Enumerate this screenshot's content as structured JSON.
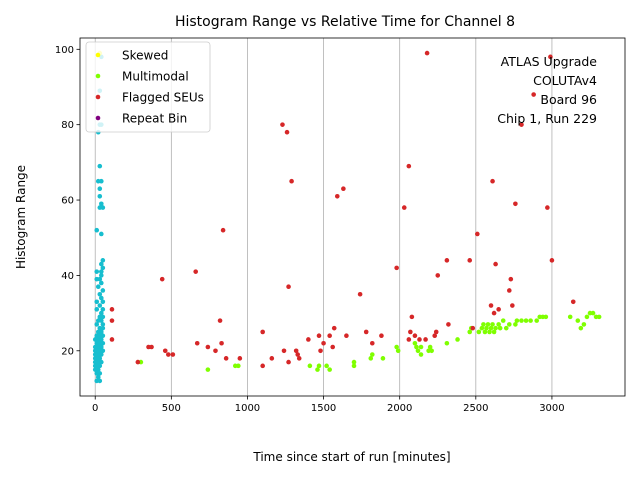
{
  "chart_data": {
    "type": "scatter",
    "title": "Histogram Range vs Relative Time for Channel 8",
    "xlabel": "Time since start of run [minutes]",
    "ylabel": "Histogram Range",
    "xlim": [
      -100,
      3480
    ],
    "ylim": [
      8,
      103
    ],
    "xticks": [
      0,
      500,
      1000,
      1500,
      2000,
      2500,
      3000
    ],
    "yticks": [
      20,
      40,
      60,
      80,
      100
    ],
    "grid": "x-only",
    "legend_position": "top-left",
    "annotation": [
      "ATLAS Upgrade",
      "COLUTAv4",
      "Board 96",
      "Chip 1, Run 229"
    ],
    "series": [
      {
        "name": "Skewed",
        "color": "#ffff00",
        "points": [
          [
            30,
            99
          ]
        ]
      },
      {
        "name": "Multimodal",
        "color": "#7fff00",
        "points": [
          [
            300,
            17
          ],
          [
            740,
            15
          ],
          [
            920,
            16
          ],
          [
            940,
            16
          ],
          [
            1410,
            16
          ],
          [
            1460,
            15
          ],
          [
            1470,
            16
          ],
          [
            1520,
            16
          ],
          [
            1540,
            15
          ],
          [
            1700,
            17
          ],
          [
            1700,
            16
          ],
          [
            1810,
            18
          ],
          [
            1820,
            19
          ],
          [
            1890,
            18
          ],
          [
            1980,
            21
          ],
          [
            1990,
            20
          ],
          [
            2100,
            22
          ],
          [
            2110,
            21
          ],
          [
            2120,
            20
          ],
          [
            2140,
            19
          ],
          [
            2140,
            21
          ],
          [
            2190,
            20
          ],
          [
            2200,
            21
          ],
          [
            2210,
            20
          ],
          [
            2310,
            22
          ],
          [
            2380,
            23
          ],
          [
            2460,
            25
          ],
          [
            2470,
            26
          ],
          [
            2520,
            25
          ],
          [
            2540,
            26
          ],
          [
            2550,
            27
          ],
          [
            2560,
            25
          ],
          [
            2570,
            26
          ],
          [
            2580,
            27
          ],
          [
            2590,
            25
          ],
          [
            2600,
            26
          ],
          [
            2610,
            27
          ],
          [
            2620,
            25
          ],
          [
            2630,
            26
          ],
          [
            2650,
            27
          ],
          [
            2660,
            26
          ],
          [
            2680,
            28
          ],
          [
            2700,
            26
          ],
          [
            2720,
            27
          ],
          [
            2760,
            27
          ],
          [
            2770,
            28
          ],
          [
            2800,
            28
          ],
          [
            2830,
            28
          ],
          [
            2860,
            28
          ],
          [
            2900,
            28
          ],
          [
            2920,
            29
          ],
          [
            2940,
            29
          ],
          [
            2960,
            29
          ],
          [
            3120,
            29
          ],
          [
            3170,
            28
          ],
          [
            3190,
            26
          ],
          [
            3210,
            27
          ],
          [
            3230,
            29
          ],
          [
            3250,
            30
          ],
          [
            3270,
            30
          ],
          [
            3290,
            29
          ],
          [
            3310,
            29
          ]
        ]
      },
      {
        "name": "Flagged SEUs",
        "color": "#d62728",
        "points": [
          [
            110,
            31
          ],
          [
            110,
            28
          ],
          [
            110,
            23
          ],
          [
            280,
            17
          ],
          [
            350,
            21
          ],
          [
            370,
            21
          ],
          [
            440,
            39
          ],
          [
            460,
            20
          ],
          [
            480,
            19
          ],
          [
            510,
            19
          ],
          [
            660,
            41
          ],
          [
            670,
            22
          ],
          [
            740,
            21
          ],
          [
            790,
            20
          ],
          [
            820,
            28
          ],
          [
            830,
            22
          ],
          [
            840,
            52
          ],
          [
            860,
            18
          ],
          [
            950,
            18
          ],
          [
            1100,
            25
          ],
          [
            1100,
            16
          ],
          [
            1160,
            18
          ],
          [
            1230,
            80
          ],
          [
            1240,
            20
          ],
          [
            1260,
            78
          ],
          [
            1270,
            37
          ],
          [
            1270,
            17
          ],
          [
            1290,
            65
          ],
          [
            1320,
            20
          ],
          [
            1330,
            19
          ],
          [
            1340,
            18
          ],
          [
            1400,
            23
          ],
          [
            1470,
            24
          ],
          [
            1480,
            20
          ],
          [
            1500,
            22
          ],
          [
            1540,
            24
          ],
          [
            1560,
            21
          ],
          [
            1570,
            26
          ],
          [
            1590,
            61
          ],
          [
            1630,
            63
          ],
          [
            1650,
            24
          ],
          [
            1740,
            35
          ],
          [
            1780,
            25
          ],
          [
            1820,
            22
          ],
          [
            1880,
            24
          ],
          [
            1980,
            42
          ],
          [
            2030,
            58
          ],
          [
            2060,
            69
          ],
          [
            2060,
            23
          ],
          [
            2070,
            25
          ],
          [
            2080,
            29
          ],
          [
            2100,
            24
          ],
          [
            2130,
            23
          ],
          [
            2170,
            23
          ],
          [
            2180,
            99
          ],
          [
            2230,
            24
          ],
          [
            2240,
            25
          ],
          [
            2250,
            40
          ],
          [
            2310,
            44
          ],
          [
            2320,
            27
          ],
          [
            2460,
            44
          ],
          [
            2480,
            26
          ],
          [
            2510,
            51
          ],
          [
            2600,
            32
          ],
          [
            2610,
            65
          ],
          [
            2620,
            30
          ],
          [
            2630,
            43
          ],
          [
            2650,
            31
          ],
          [
            2720,
            36
          ],
          [
            2730,
            39
          ],
          [
            2740,
            32
          ],
          [
            2760,
            59
          ],
          [
            2800,
            80
          ],
          [
            2880,
            88
          ],
          [
            2970,
            58
          ],
          [
            2990,
            98
          ],
          [
            3000,
            44
          ],
          [
            3140,
            33
          ]
        ]
      },
      {
        "name": "Repeat Bin",
        "color": "#800080",
        "points": []
      },
      {
        "name": "",
        "color": "#17becf",
        "points": [
          [
            40,
            98
          ],
          [
            30,
            89
          ],
          [
            30,
            80
          ],
          [
            40,
            80
          ],
          [
            20,
            78
          ],
          [
            30,
            69
          ],
          [
            20,
            65
          ],
          [
            40,
            65
          ],
          [
            30,
            63
          ],
          [
            30,
            61
          ],
          [
            40,
            59
          ],
          [
            30,
            58
          ],
          [
            50,
            58
          ],
          [
            10,
            52
          ],
          [
            40,
            51
          ],
          [
            50,
            44
          ],
          [
            40,
            43
          ],
          [
            50,
            42
          ],
          [
            40,
            41
          ],
          [
            10,
            41
          ],
          [
            40,
            40
          ],
          [
            10,
            39
          ],
          [
            30,
            39
          ],
          [
            40,
            38
          ],
          [
            20,
            37
          ],
          [
            50,
            36
          ],
          [
            30,
            35
          ],
          [
            40,
            34
          ],
          [
            10,
            33
          ],
          [
            50,
            33
          ],
          [
            30,
            32
          ],
          [
            50,
            31
          ],
          [
            10,
            31
          ],
          [
            40,
            30
          ],
          [
            50,
            29
          ],
          [
            30,
            29
          ],
          [
            20,
            28
          ],
          [
            40,
            28
          ],
          [
            50,
            27
          ],
          [
            10,
            27
          ],
          [
            30,
            26
          ],
          [
            50,
            26
          ],
          [
            20,
            25
          ],
          [
            40,
            25
          ],
          [
            10,
            24
          ],
          [
            30,
            24
          ],
          [
            50,
            24
          ],
          [
            20,
            23
          ],
          [
            40,
            23
          ],
          [
            0,
            23
          ],
          [
            10,
            22
          ],
          [
            30,
            22
          ],
          [
            50,
            22
          ],
          [
            20,
            21
          ],
          [
            40,
            21
          ],
          [
            0,
            21
          ],
          [
            10,
            20
          ],
          [
            30,
            20
          ],
          [
            50,
            20
          ],
          [
            20,
            19
          ],
          [
            40,
            19
          ],
          [
            0,
            19
          ],
          [
            10,
            18
          ],
          [
            30,
            18
          ],
          [
            20,
            17
          ],
          [
            40,
            17
          ],
          [
            0,
            17
          ],
          [
            10,
            16
          ],
          [
            30,
            16
          ],
          [
            20,
            15
          ],
          [
            0,
            15
          ],
          [
            10,
            14
          ],
          [
            30,
            14
          ],
          [
            20,
            13
          ],
          [
            10,
            12
          ],
          [
            30,
            12
          ],
          [
            0,
            20
          ],
          [
            0,
            18
          ],
          [
            0,
            16
          ],
          [
            20,
            20
          ],
          [
            20,
            18
          ],
          [
            20,
            16
          ]
        ]
      }
    ]
  }
}
